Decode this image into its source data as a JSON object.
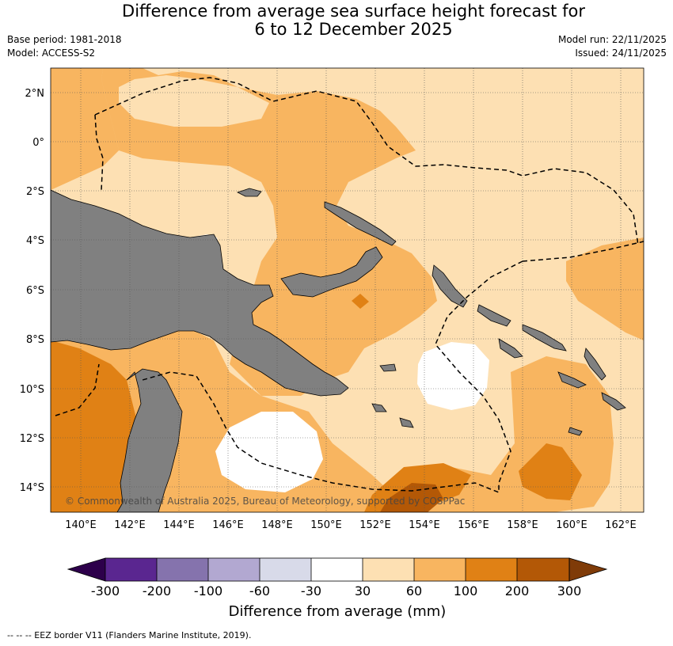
{
  "title_line1": "Difference from average sea surface height forecast for",
  "title_line2": "6 to 12 December 2025",
  "left_meta": {
    "base_period": "Base period: 1981-2018",
    "model": "Model: ACCESS-S2"
  },
  "right_meta": {
    "model_run": "Model run: 22/11/2025",
    "issued": "Issued: 24/11/2025"
  },
  "map": {
    "lon_ticks": [
      "140°E",
      "142°E",
      "144°E",
      "146°E",
      "148°E",
      "150°E",
      "152°E",
      "154°E",
      "156°E",
      "158°E",
      "160°E",
      "162°E"
    ],
    "lat_ticks": [
      "2°N",
      "0°",
      "2°S",
      "4°S",
      "6°S",
      "8°S",
      "10°S",
      "12°S",
      "14°S"
    ],
    "copyright": "© Commonwealth of Australia 2025, Bureau of Meteorology, supported by COSPPac"
  },
  "colorbar": {
    "ticks": [
      "-300",
      "-200",
      "-100",
      "-60",
      "-30",
      "30",
      "60",
      "100",
      "200",
      "300"
    ],
    "colors": [
      "#5a2690",
      "#8573ad",
      "#b2a8d1",
      "#d8dae9",
      "#ffffff",
      "#fde0b3",
      "#f8b560",
      "#e08115",
      "#b35806"
    ],
    "extend_low_color": "#2d004b",
    "extend_high_color": "#7f3b08",
    "label": "Difference from average (mm)"
  },
  "footnote": "--  --  -- EEZ border V11 (Flanders Marine Institute, 2019).",
  "land_color": "#808080"
}
